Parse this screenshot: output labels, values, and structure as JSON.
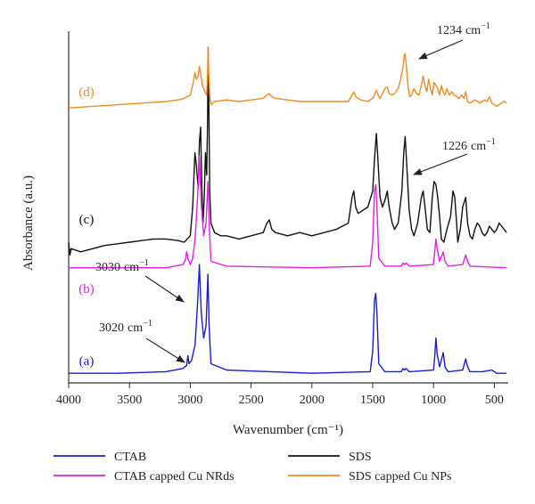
{
  "chart_data": {
    "type": "line",
    "title": "",
    "xlabel": "Wavenumber (cm⁻¹)",
    "ylabel": "Absorbance (a.u.)",
    "xlim": [
      4000,
      400
    ],
    "x_reversed": true,
    "x_ticks": [
      4000,
      3500,
      3000,
      2500,
      2000,
      1500,
      1000,
      500
    ],
    "y_ticks": false,
    "grid": false,
    "legend_position": "bottom",
    "series": [
      {
        "name": "CTAB",
        "curve_label": "(a)",
        "color": "#1a1ad0",
        "points": [
          [
            4000,
            0.03
          ],
          [
            3600,
            0.03
          ],
          [
            3200,
            0.035
          ],
          [
            3060,
            0.045
          ],
          [
            3030,
            0.055
          ],
          [
            3020,
            0.085
          ],
          [
            3010,
            0.06
          ],
          [
            2990,
            0.07
          ],
          [
            2960,
            0.12
          ],
          [
            2940,
            0.25
          ],
          [
            2925,
            0.37
          ],
          [
            2910,
            0.22
          ],
          [
            2890,
            0.14
          ],
          [
            2870,
            0.18
          ],
          [
            2855,
            0.34
          ],
          [
            2845,
            0.18
          ],
          [
            2830,
            0.06
          ],
          [
            2700,
            0.04
          ],
          [
            2000,
            0.03
          ],
          [
            1520,
            0.035
          ],
          [
            1500,
            0.1
          ],
          [
            1485,
            0.26
          ],
          [
            1475,
            0.28
          ],
          [
            1465,
            0.22
          ],
          [
            1450,
            0.06
          ],
          [
            1400,
            0.035
          ],
          [
            1265,
            0.035
          ],
          [
            1250,
            0.045
          ],
          [
            1240,
            0.04
          ],
          [
            1225,
            0.045
          ],
          [
            1200,
            0.035
          ],
          [
            1000,
            0.04
          ],
          [
            990,
            0.08
          ],
          [
            980,
            0.14
          ],
          [
            970,
            0.09
          ],
          [
            950,
            0.05
          ],
          [
            920,
            0.095
          ],
          [
            905,
            0.05
          ],
          [
            880,
            0.035
          ],
          [
            760,
            0.04
          ],
          [
            735,
            0.075
          ],
          [
            720,
            0.05
          ],
          [
            700,
            0.035
          ],
          [
            600,
            0.035
          ],
          [
            520,
            0.04
          ],
          [
            480,
            0.03
          ],
          [
            400,
            0.03
          ]
        ]
      },
      {
        "name": "SDS",
        "curve_label": "(c)",
        "color": "#111111",
        "points": [
          [
            4000,
            0.44
          ],
          [
            3990,
            0.4
          ],
          [
            3980,
            0.42
          ],
          [
            3900,
            0.41
          ],
          [
            3800,
            0.42
          ],
          [
            3700,
            0.43
          ],
          [
            3600,
            0.435
          ],
          [
            3500,
            0.44
          ],
          [
            3400,
            0.445
          ],
          [
            3300,
            0.45
          ],
          [
            3200,
            0.45
          ],
          [
            3100,
            0.445
          ],
          [
            3050,
            0.44
          ],
          [
            3000,
            0.46
          ],
          [
            2980,
            0.55
          ],
          [
            2962,
            0.72
          ],
          [
            2950,
            0.68
          ],
          [
            2935,
            0.61
          ],
          [
            2925,
            0.75
          ],
          [
            2915,
            0.8
          ],
          [
            2905,
            0.62
          ],
          [
            2895,
            0.5
          ],
          [
            2885,
            0.58
          ],
          [
            2875,
            0.72
          ],
          [
            2865,
            0.65
          ],
          [
            2858,
            0.82
          ],
          [
            2853,
            1.05
          ],
          [
            2847,
            0.85
          ],
          [
            2840,
            0.6
          ],
          [
            2830,
            0.5
          ],
          [
            2800,
            0.47
          ],
          [
            2750,
            0.46
          ],
          [
            2700,
            0.46
          ],
          [
            2600,
            0.45
          ],
          [
            2500,
            0.46
          ],
          [
            2400,
            0.47
          ],
          [
            2370,
            0.5
          ],
          [
            2350,
            0.51
          ],
          [
            2330,
            0.48
          ],
          [
            2300,
            0.47
          ],
          [
            2200,
            0.46
          ],
          [
            2100,
            0.47
          ],
          [
            2000,
            0.46
          ],
          [
            1900,
            0.47
          ],
          [
            1800,
            0.48
          ],
          [
            1700,
            0.5
          ],
          [
            1670,
            0.58
          ],
          [
            1655,
            0.6
          ],
          [
            1640,
            0.55
          ],
          [
            1620,
            0.53
          ],
          [
            1580,
            0.54
          ],
          [
            1540,
            0.55
          ],
          [
            1500,
            0.6
          ],
          [
            1485,
            0.7
          ],
          [
            1470,
            0.78
          ],
          [
            1460,
            0.72
          ],
          [
            1440,
            0.58
          ],
          [
            1420,
            0.55
          ],
          [
            1400,
            0.57
          ],
          [
            1380,
            0.6
          ],
          [
            1365,
            0.55
          ],
          [
            1340,
            0.5
          ],
          [
            1320,
            0.48
          ],
          [
            1290,
            0.5
          ],
          [
            1260,
            0.6
          ],
          [
            1245,
            0.72
          ],
          [
            1233,
            0.77
          ],
          [
            1220,
            0.68
          ],
          [
            1200,
            0.54
          ],
          [
            1180,
            0.48
          ],
          [
            1160,
            0.46
          ],
          [
            1130,
            0.5
          ],
          [
            1100,
            0.58
          ],
          [
            1085,
            0.6
          ],
          [
            1070,
            0.55
          ],
          [
            1050,
            0.48
          ],
          [
            1030,
            0.47
          ],
          [
            1010,
            0.58
          ],
          [
            995,
            0.63
          ],
          [
            980,
            0.62
          ],
          [
            965,
            0.58
          ],
          [
            950,
            0.52
          ],
          [
            935,
            0.45
          ],
          [
            915,
            0.44
          ],
          [
            890,
            0.48
          ],
          [
            860,
            0.52
          ],
          [
            840,
            0.6
          ],
          [
            825,
            0.58
          ],
          [
            810,
            0.5
          ],
          [
            800,
            0.44
          ],
          [
            780,
            0.48
          ],
          [
            760,
            0.55
          ],
          [
            735,
            0.58
          ],
          [
            720,
            0.5
          ],
          [
            700,
            0.46
          ],
          [
            680,
            0.45
          ],
          [
            660,
            0.48
          ],
          [
            640,
            0.5
          ],
          [
            620,
            0.49
          ],
          [
            600,
            0.47
          ],
          [
            580,
            0.46
          ],
          [
            560,
            0.47
          ],
          [
            540,
            0.49
          ],
          [
            520,
            0.48
          ],
          [
            500,
            0.47
          ],
          [
            480,
            0.48
          ],
          [
            460,
            0.5
          ],
          [
            440,
            0.49
          ],
          [
            420,
            0.48
          ],
          [
            400,
            0.47
          ]
        ]
      },
      {
        "name": "CTAB capped Cu NRds",
        "curve_label": "(b)",
        "color": "#e020e0",
        "points": [
          [
            4000,
            0.36
          ],
          [
            3600,
            0.36
          ],
          [
            3200,
            0.36
          ],
          [
            3060,
            0.37
          ],
          [
            3040,
            0.385
          ],
          [
            3030,
            0.41
          ],
          [
            3020,
            0.39
          ],
          [
            3000,
            0.37
          ],
          [
            2980,
            0.39
          ],
          [
            2960,
            0.45
          ],
          [
            2940,
            0.58
          ],
          [
            2925,
            0.71
          ],
          [
            2910,
            0.56
          ],
          [
            2890,
            0.46
          ],
          [
            2870,
            0.5
          ],
          [
            2855,
            0.63
          ],
          [
            2845,
            0.5
          ],
          [
            2830,
            0.38
          ],
          [
            2700,
            0.365
          ],
          [
            2000,
            0.36
          ],
          [
            1520,
            0.365
          ],
          [
            1500,
            0.44
          ],
          [
            1485,
            0.6
          ],
          [
            1475,
            0.62
          ],
          [
            1465,
            0.55
          ],
          [
            1450,
            0.39
          ],
          [
            1400,
            0.365
          ],
          [
            1265,
            0.365
          ],
          [
            1250,
            0.375
          ],
          [
            1240,
            0.37
          ],
          [
            1225,
            0.375
          ],
          [
            1200,
            0.365
          ],
          [
            1000,
            0.37
          ],
          [
            990,
            0.41
          ],
          [
            980,
            0.45
          ],
          [
            970,
            0.42
          ],
          [
            950,
            0.38
          ],
          [
            920,
            0.41
          ],
          [
            905,
            0.38
          ],
          [
            880,
            0.365
          ],
          [
            760,
            0.37
          ],
          [
            735,
            0.4
          ],
          [
            720,
            0.38
          ],
          [
            700,
            0.365
          ],
          [
            400,
            0.36
          ]
        ]
      },
      {
        "name": "SDS capped Cu NPs",
        "curve_label": "(d)",
        "color": "#f08a24",
        "points": [
          [
            4000,
            0.86
          ],
          [
            3800,
            0.865
          ],
          [
            3600,
            0.87
          ],
          [
            3400,
            0.875
          ],
          [
            3200,
            0.88
          ],
          [
            3100,
            0.885
          ],
          [
            3050,
            0.89
          ],
          [
            3000,
            0.9
          ],
          [
            2980,
            0.93
          ],
          [
            2962,
            0.97
          ],
          [
            2950,
            0.95
          ],
          [
            2935,
            0.96
          ],
          [
            2925,
            0.99
          ],
          [
            2915,
            0.97
          ],
          [
            2900,
            0.93
          ],
          [
            2880,
            0.91
          ],
          [
            2865,
            0.9
          ],
          [
            2858,
            0.97
          ],
          [
            2853,
            1.05
          ],
          [
            2848,
            0.97
          ],
          [
            2840,
            0.9
          ],
          [
            2830,
            0.87
          ],
          [
            2800,
            0.88
          ],
          [
            2700,
            0.885
          ],
          [
            2600,
            0.88
          ],
          [
            2500,
            0.885
          ],
          [
            2400,
            0.89
          ],
          [
            2370,
            0.9
          ],
          [
            2350,
            0.905
          ],
          [
            2330,
            0.895
          ],
          [
            2300,
            0.89
          ],
          [
            2200,
            0.885
          ],
          [
            2100,
            0.88
          ],
          [
            2000,
            0.88
          ],
          [
            1900,
            0.88
          ],
          [
            1800,
            0.88
          ],
          [
            1700,
            0.88
          ],
          [
            1670,
            0.9
          ],
          [
            1655,
            0.91
          ],
          [
            1640,
            0.895
          ],
          [
            1600,
            0.885
          ],
          [
            1540,
            0.88
          ],
          [
            1500,
            0.89
          ],
          [
            1485,
            0.9
          ],
          [
            1470,
            0.915
          ],
          [
            1455,
            0.9
          ],
          [
            1440,
            0.89
          ],
          [
            1420,
            0.905
          ],
          [
            1400,
            0.92
          ],
          [
            1380,
            0.925
          ],
          [
            1365,
            0.905
          ],
          [
            1340,
            0.9
          ],
          [
            1320,
            0.905
          ],
          [
            1290,
            0.92
          ],
          [
            1270,
            0.95
          ],
          [
            1250,
            0.99
          ],
          [
            1240,
            1.025
          ],
          [
            1234,
            1.03
          ],
          [
            1225,
            1.0
          ],
          [
            1210,
            0.93
          ],
          [
            1195,
            0.895
          ],
          [
            1180,
            0.9
          ],
          [
            1160,
            0.92
          ],
          [
            1140,
            0.905
          ],
          [
            1120,
            0.9
          ],
          [
            1100,
            0.93
          ],
          [
            1085,
            0.96
          ],
          [
            1070,
            0.93
          ],
          [
            1055,
            0.91
          ],
          [
            1040,
            0.95
          ],
          [
            1025,
            0.92
          ],
          [
            1010,
            0.9
          ],
          [
            995,
            0.94
          ],
          [
            980,
            0.93
          ],
          [
            965,
            0.92
          ],
          [
            950,
            0.9
          ],
          [
            935,
            0.93
          ],
          [
            920,
            0.91
          ],
          [
            905,
            0.9
          ],
          [
            890,
            0.92
          ],
          [
            870,
            0.9
          ],
          [
            850,
            0.91
          ],
          [
            830,
            0.9
          ],
          [
            810,
            0.895
          ],
          [
            790,
            0.89
          ],
          [
            770,
            0.9
          ],
          [
            750,
            0.89
          ],
          [
            735,
            0.91
          ],
          [
            720,
            0.88
          ],
          [
            700,
            0.875
          ],
          [
            680,
            0.88
          ],
          [
            660,
            0.885
          ],
          [
            640,
            0.88
          ],
          [
            620,
            0.875
          ],
          [
            600,
            0.88
          ],
          [
            580,
            0.885
          ],
          [
            560,
            0.88
          ],
          [
            540,
            0.895
          ],
          [
            520,
            0.875
          ],
          [
            500,
            0.87
          ],
          [
            480,
            0.865
          ],
          [
            460,
            0.87
          ],
          [
            440,
            0.875
          ],
          [
            420,
            0.88
          ],
          [
            400,
            0.875
          ]
        ]
      }
    ],
    "annotations": [
      {
        "id": "peak-3020",
        "base": "3020",
        "sup": "−1",
        "unit": "cm",
        "series": "CTAB",
        "x": 3020
      },
      {
        "id": "peak-3030",
        "base": "3030",
        "sup": "−1",
        "unit": "cm",
        "series": "CTAB capped Cu NRds",
        "x": 3030
      },
      {
        "id": "peak-1226",
        "base": "1226",
        "sup": "−1",
        "unit": "cm",
        "series": "SDS",
        "x": 1226
      },
      {
        "id": "peak-1234",
        "base": "1234",
        "sup": "−1",
        "unit": "cm",
        "series": "SDS capped Cu NPs",
        "x": 1234
      }
    ]
  }
}
